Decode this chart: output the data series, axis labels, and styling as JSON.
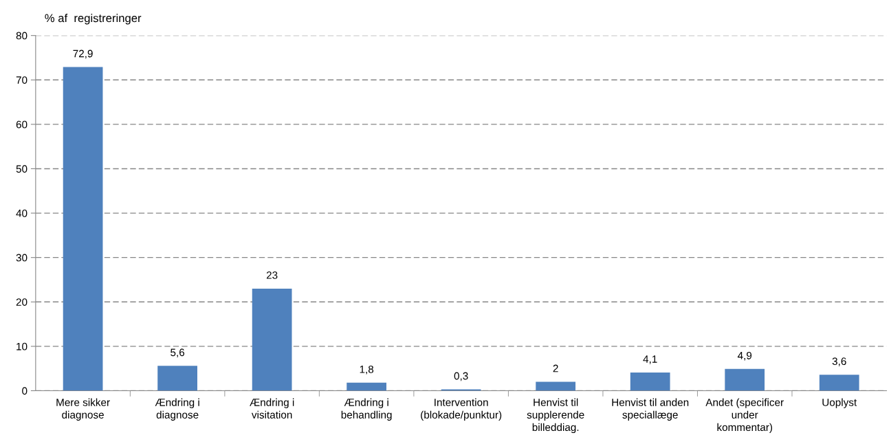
{
  "chart_data": {
    "type": "bar",
    "ylabel": "% af  registreringer",
    "categories": [
      "Mere sikker\ndiagnose",
      "Ændring i\ndiagnose",
      "Ændring i\nvisitation",
      "Ændring i\nbehandling",
      "Intervention\n(blokade/punktur)",
      "Henvist til\nsupplerende\nbilleddiag.",
      "Henvist til anden\nspeciallæge",
      "Andet (specificer\nunder\nkommentar)",
      "Uoplyst"
    ],
    "values": [
      72.9,
      5.6,
      23,
      1.8,
      0.3,
      2,
      4.1,
      4.9,
      3.6
    ],
    "value_labels": [
      "72,9",
      "5,6",
      "23",
      "1,8",
      "0,3",
      "2",
      "4,1",
      "4,9",
      "3,6"
    ],
    "color": "#4f81bd",
    "ylim": [
      0,
      80
    ],
    "yticks": [
      0,
      10,
      20,
      30,
      40,
      50,
      60,
      70,
      80
    ],
    "grid": "y",
    "line_style": "dashed"
  }
}
